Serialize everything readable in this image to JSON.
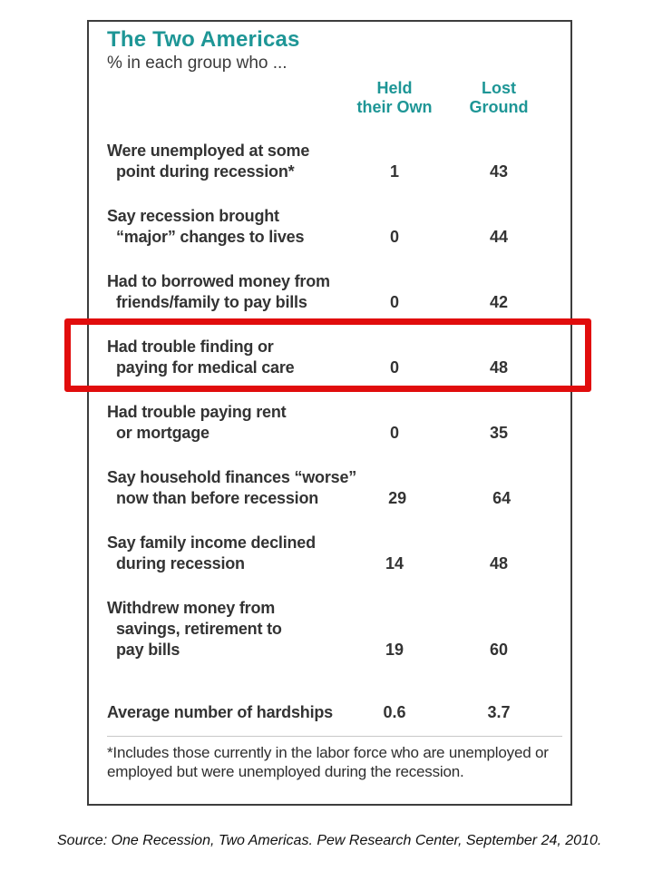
{
  "colors": {
    "accent_teal": "#1e9696",
    "text_dark": "#333333",
    "highlight_red": "#e10d0d",
    "table_border": "#3d3d3d"
  },
  "figure": {
    "title": "The Two Americas",
    "subtitle": "% in each group who ...",
    "columns": [
      {
        "line1": "Held",
        "line2": "their Own"
      },
      {
        "line1": "Lost",
        "line2": "Ground"
      }
    ],
    "rows": [
      {
        "label_lines": [
          "Were unemployed at some",
          "point during recession*"
        ],
        "held": "1",
        "lost": "43",
        "highlighted": false,
        "summary": false
      },
      {
        "label_lines": [
          "Say recession brought",
          "“major” changes to lives"
        ],
        "held": "0",
        "lost": "44",
        "highlighted": false,
        "summary": false
      },
      {
        "label_lines": [
          "Had to borrowed money from",
          "friends/family to pay bills"
        ],
        "held": "0",
        "lost": "42",
        "highlighted": false,
        "summary": false
      },
      {
        "label_lines": [
          "Had trouble finding or",
          "paying for medical care"
        ],
        "held": "0",
        "lost": "48",
        "highlighted": true,
        "summary": false
      },
      {
        "label_lines": [
          "Had trouble paying rent",
          "or mortgage"
        ],
        "held": "0",
        "lost": "35",
        "highlighted": false,
        "summary": false
      },
      {
        "label_lines": [
          "Say household finances “worse”",
          "now than before recession"
        ],
        "held": "29",
        "lost": "64",
        "highlighted": false,
        "summary": false
      },
      {
        "label_lines": [
          "Say family income declined",
          "during recession"
        ],
        "held": "14",
        "lost": "48",
        "highlighted": false,
        "summary": false
      },
      {
        "label_lines": [
          "Withdrew money from",
          "savings, retirement to",
          "pay bills"
        ],
        "held": "19",
        "lost": "60",
        "highlighted": false,
        "summary": false
      },
      {
        "label_lines": [
          "Average number of hardships"
        ],
        "held": "0.6",
        "lost": "3.7",
        "highlighted": false,
        "summary": true
      }
    ],
    "footnote": "*Includes those currently in the labor force who are unemployed or employed but were unemployed during the recession.",
    "highlight_note": "Red rectangle highlights the row: Had trouble finding or paying for medical care"
  },
  "source_line": "Source: One Recession, Two Americas. Pew Research Center, September 24, 2010.",
  "chart_data": {
    "type": "table",
    "title": "The Two Americas",
    "subtitle": "% in each group who ...",
    "columns": [
      "Held their Own",
      "Lost Ground"
    ],
    "categories": [
      "Were unemployed at some point during recession*",
      "Say recession brought “major” changes to lives",
      "Had to borrowed money from friends/family to pay bills",
      "Had trouble finding or paying for medical care",
      "Had trouble paying rent or mortgage",
      "Say household finances “worse” now than before recession",
      "Say family income declined during recession",
      "Withdrew money from savings, retirement to pay bills",
      "Average number of hardships"
    ],
    "series": [
      {
        "name": "Held their Own",
        "values": [
          1,
          0,
          0,
          0,
          0,
          29,
          14,
          19,
          0.6
        ]
      },
      {
        "name": "Lost Ground",
        "values": [
          43,
          44,
          42,
          48,
          35,
          64,
          48,
          60,
          3.7
        ]
      }
    ],
    "annotations": [
      "Red rectangle drawn around the row “Had trouble finding or paying for medical care” (0 / 48)"
    ],
    "footnote": "*Includes those currently in the labor force who are unemployed or employed but were unemployed during the recession.",
    "source": "Source: One Recession, Two Americas. Pew Research Center, September 24, 2010."
  }
}
